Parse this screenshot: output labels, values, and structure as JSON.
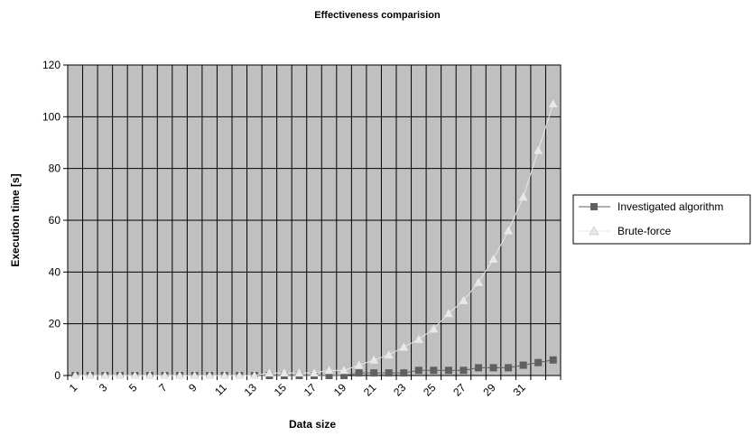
{
  "chart_data": {
    "type": "line",
    "title": "Effectiveness comparision",
    "xlabel": "Data size",
    "ylabel": "Execution time [s]",
    "ylim": [
      0,
      120
    ],
    "yticks": [
      0,
      20,
      40,
      60,
      80,
      100,
      120
    ],
    "x": [
      1,
      2,
      3,
      4,
      5,
      6,
      7,
      8,
      9,
      10,
      11,
      12,
      13,
      14,
      15,
      16,
      17,
      18,
      19,
      20,
      21,
      22,
      23,
      24,
      25,
      26,
      27,
      28,
      29,
      30,
      31,
      32,
      33
    ],
    "x_tick_labels": [
      "1",
      "3",
      "5",
      "7",
      "9",
      "11",
      "13",
      "15",
      "17",
      "19",
      "21",
      "23",
      "25",
      "27",
      "29",
      "31"
    ],
    "grid": true,
    "legend_position": "right",
    "plot_background": "#c0c0c0",
    "series": [
      {
        "name": "Investigated algorithm",
        "color": "#606060",
        "marker": "square",
        "values": [
          0,
          0,
          0,
          0,
          0,
          0,
          0,
          0,
          0,
          0,
          0,
          0,
          0,
          0,
          0,
          0,
          0,
          0,
          0,
          1,
          1,
          1,
          1,
          2,
          2,
          2,
          2,
          3,
          3,
          3,
          4,
          5,
          6
        ]
      },
      {
        "name": "Brute-force",
        "color": "#e8e8e8",
        "marker": "triangle",
        "values": [
          0,
          0,
          0,
          0,
          0,
          0,
          0,
          0,
          0,
          0,
          0,
          0,
          0,
          1,
          1,
          1,
          1,
          2,
          2,
          4,
          6,
          8,
          11,
          14,
          18,
          24,
          29,
          36,
          45,
          56,
          69,
          87,
          105
        ]
      }
    ]
  }
}
